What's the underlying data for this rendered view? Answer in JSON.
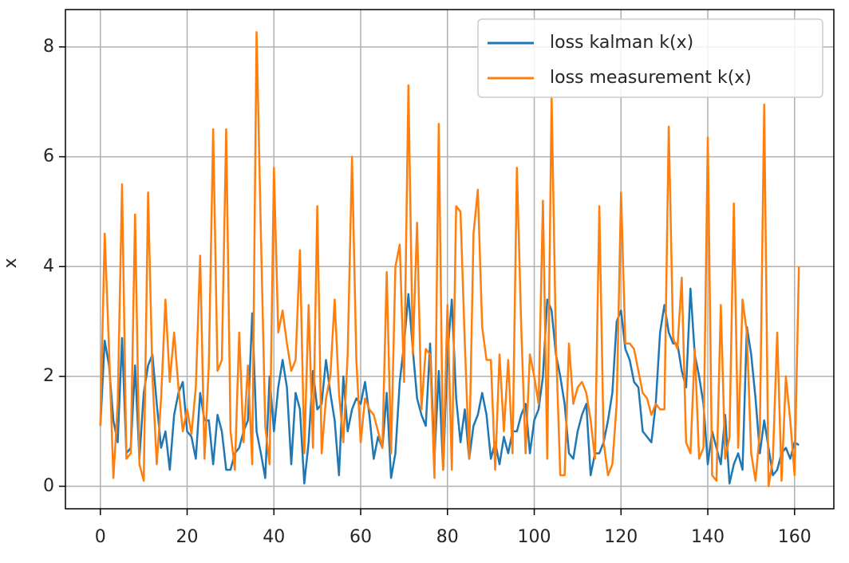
{
  "chart_data": {
    "type": "line",
    "y_label": "x",
    "x": [
      0,
      1,
      2,
      3,
      4,
      5,
      6,
      7,
      8,
      9,
      10,
      11,
      12,
      13,
      14,
      15,
      16,
      17,
      18,
      19,
      20,
      21,
      22,
      23,
      24,
      25,
      26,
      27,
      28,
      29,
      30,
      31,
      32,
      33,
      34,
      35,
      36,
      37,
      38,
      39,
      40,
      41,
      42,
      43,
      44,
      45,
      46,
      47,
      48,
      49,
      50,
      51,
      52,
      53,
      54,
      55,
      56,
      57,
      58,
      59,
      60,
      61,
      62,
      63,
      64,
      65,
      66,
      67,
      68,
      69,
      70,
      71,
      72,
      73,
      74,
      75,
      76,
      77,
      78,
      79,
      80,
      81,
      82,
      83,
      84,
      85,
      86,
      87,
      88,
      89,
      90,
      91,
      92,
      93,
      94,
      95,
      96,
      97,
      98,
      99,
      100,
      101,
      102,
      103,
      104,
      105,
      106,
      107,
      108,
      109,
      110,
      111,
      112,
      113,
      114,
      115,
      116,
      117,
      118,
      119,
      120,
      121,
      122,
      123,
      124,
      125,
      126,
      127,
      128,
      129,
      130,
      131,
      132,
      133,
      134,
      135,
      136,
      137,
      138,
      139,
      140,
      141,
      142,
      143,
      144,
      145,
      146,
      147,
      148,
      149,
      150,
      151,
      152,
      153,
      154,
      155,
      156,
      157,
      158,
      159,
      160,
      161
    ],
    "series": [
      {
        "name": "loss kalman k(x)",
        "color": "#1f77b4",
        "values": [
          1.1,
          2.65,
          2.2,
          1.2,
          0.8,
          2.7,
          0.6,
          0.7,
          2.2,
          0.5,
          1.7,
          2.2,
          2.4,
          1.5,
          0.7,
          1.0,
          0.3,
          1.3,
          1.7,
          1.9,
          1.0,
          0.9,
          0.5,
          1.7,
          1.2,
          1.2,
          0.4,
          1.3,
          1.0,
          0.3,
          0.3,
          0.6,
          0.7,
          1.0,
          1.2,
          3.15,
          1.0,
          0.6,
          0.15,
          2.0,
          1.0,
          1.8,
          2.3,
          1.8,
          0.4,
          1.7,
          1.4,
          0.05,
          0.8,
          2.1,
          1.4,
          1.5,
          2.3,
          1.7,
          1.2,
          0.2,
          2.0,
          1.0,
          1.4,
          1.6,
          1.5,
          1.9,
          1.3,
          0.5,
          0.9,
          0.7,
          1.7,
          0.15,
          0.6,
          1.9,
          2.6,
          3.5,
          2.5,
          1.6,
          1.3,
          1.1,
          2.6,
          0.5,
          2.1,
          0.3,
          2.4,
          3.4,
          1.6,
          0.8,
          1.4,
          0.5,
          1.1,
          1.3,
          1.7,
          1.3,
          0.5,
          0.8,
          0.4,
          0.9,
          0.6,
          1.0,
          1.0,
          1.3,
          1.5,
          0.6,
          1.2,
          1.4,
          2.0,
          3.4,
          3.2,
          2.4,
          2.0,
          1.5,
          0.6,
          0.5,
          1.0,
          1.3,
          1.5,
          0.2,
          0.6,
          0.6,
          0.8,
          1.2,
          1.7,
          3.0,
          3.2,
          2.5,
          2.3,
          1.9,
          1.8,
          1.0,
          0.9,
          0.8,
          1.5,
          2.8,
          3.3,
          2.8,
          2.6,
          2.6,
          2.1,
          1.8,
          3.6,
          2.4,
          2.0,
          1.5,
          0.4,
          1.0,
          0.7,
          0.4,
          1.3,
          0.05,
          0.4,
          0.6,
          0.3,
          2.9,
          2.4,
          1.6,
          0.6,
          1.2,
          0.7,
          0.2,
          0.3,
          0.6,
          0.7,
          0.5,
          0.8,
          0.75
        ]
      },
      {
        "name": "loss measurement k(x)",
        "color": "#ff7f0e",
        "values": [
          1.1,
          4.6,
          2.5,
          0.15,
          1.5,
          5.5,
          0.5,
          0.6,
          4.95,
          0.4,
          0.1,
          5.35,
          2.0,
          0.4,
          1.6,
          3.4,
          1.9,
          2.8,
          1.8,
          1.0,
          1.4,
          0.95,
          1.8,
          4.2,
          0.5,
          2.2,
          6.5,
          2.1,
          2.3,
          6.5,
          1.0,
          0.3,
          2.8,
          0.8,
          2.2,
          0.4,
          8.27,
          4.6,
          1.1,
          0.4,
          5.8,
          2.8,
          3.2,
          2.6,
          2.1,
          2.3,
          4.3,
          0.6,
          3.3,
          0.7,
          5.1,
          0.6,
          1.6,
          2.0,
          3.4,
          1.7,
          0.8,
          2.4,
          6.0,
          2.3,
          0.8,
          1.6,
          1.4,
          1.3,
          1.0,
          0.7,
          3.9,
          0.6,
          4.0,
          4.4,
          1.9,
          7.3,
          2.4,
          4.8,
          1.4,
          2.5,
          2.4,
          0.15,
          6.6,
          0.3,
          3.3,
          0.3,
          5.1,
          5.0,
          2.6,
          0.5,
          4.6,
          5.4,
          2.9,
          2.3,
          2.3,
          0.3,
          2.4,
          1.0,
          2.3,
          0.6,
          5.8,
          2.9,
          0.6,
          2.4,
          2.0,
          1.5,
          5.2,
          0.5,
          7.1,
          2.6,
          0.2,
          0.2,
          2.6,
          1.5,
          1.8,
          1.9,
          1.7,
          1.2,
          0.5,
          5.1,
          0.8,
          0.2,
          0.4,
          1.5,
          5.35,
          2.6,
          2.6,
          2.5,
          2.1,
          1.7,
          1.6,
          1.3,
          1.5,
          1.4,
          1.4,
          6.55,
          2.7,
          2.5,
          3.8,
          0.8,
          0.6,
          2.5,
          0.5,
          0.7,
          6.35,
          0.2,
          0.1,
          3.3,
          0.5,
          0.9,
          5.15,
          0.7,
          3.4,
          2.8,
          0.6,
          0.1,
          1.0,
          6.95,
          0.0,
          0.5,
          2.8,
          0.1,
          2.0,
          1.2,
          0.2,
          4.0
        ]
      }
    ],
    "xlim": [
      -8.05,
      169.05
    ],
    "ylim": [
      -0.41,
      8.68
    ],
    "xticks": [
      0,
      20,
      40,
      60,
      80,
      100,
      120,
      140,
      160
    ],
    "yticks": [
      0,
      2,
      4,
      6,
      8
    ],
    "grid": true,
    "legend": "upper right"
  }
}
